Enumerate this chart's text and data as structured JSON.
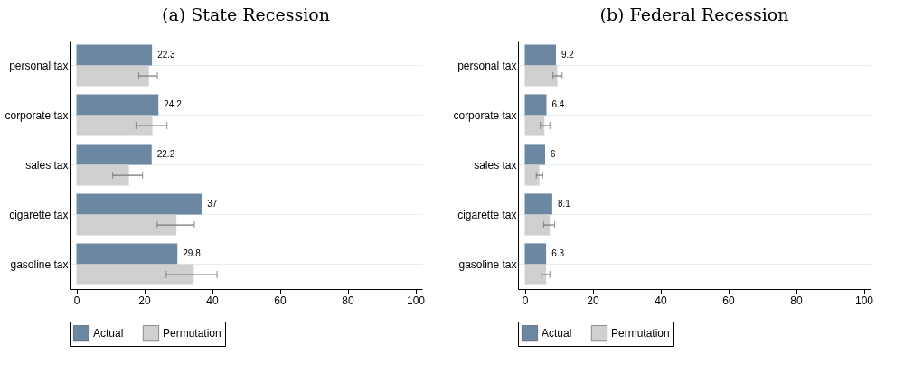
{
  "chart_data": [
    {
      "type": "bar",
      "orientation": "horizontal",
      "title": "(a) State Recession",
      "categories": [
        "personal tax",
        "corporate tax",
        "sales tax",
        "cigarette tax",
        "gasoline tax"
      ],
      "xlim": [
        -2,
        102
      ],
      "xticks": [
        0,
        20,
        40,
        60,
        80,
        100
      ],
      "grid": "y",
      "legend": "bottom",
      "series": [
        {
          "name": "Actual",
          "color": "#6c87a2",
          "values": [
            22.3,
            24.2,
            22.2,
            37,
            29.8
          ],
          "value_labels": [
            "22.3",
            "24.2",
            "22.2",
            "37",
            "29.8"
          ]
        },
        {
          "name": "Permutation",
          "color": "#d0d0d0",
          "values": [
            21.4,
            22.4,
            15.5,
            29.5,
            34.6
          ],
          "errors": [
            [
              18.4,
              23.9
            ],
            [
              17.6,
              26.7
            ],
            [
              10.7,
              19.5
            ],
            [
              23.8,
              34.8
            ],
            [
              26.5,
              41.5
            ]
          ]
        }
      ]
    },
    {
      "type": "bar",
      "orientation": "horizontal",
      "title": "(b) Federal Recession",
      "categories": [
        "personal tax",
        "corporate tax",
        "sales tax",
        "cigarette tax",
        "gasoline tax"
      ],
      "xlim": [
        -2,
        102
      ],
      "xticks": [
        0,
        20,
        40,
        60,
        80,
        100
      ],
      "grid": "y",
      "legend": "bottom",
      "series": [
        {
          "name": "Actual",
          "color": "#6c87a2",
          "values": [
            9.2,
            6.4,
            6,
            8.1,
            6.3
          ],
          "value_labels": [
            "9.2",
            "6.4",
            "6",
            "8.1",
            "6.3"
          ]
        },
        {
          "name": "Permutation",
          "color": "#d0d0d0",
          "values": [
            9.6,
            5.8,
            4.3,
            7.4,
            6.3
          ],
          "errors": [
            [
              8.3,
              11.0
            ],
            [
              4.6,
              7.4
            ],
            [
              3.4,
              5.3
            ],
            [
              5.6,
              8.8
            ],
            [
              5.0,
              7.4
            ]
          ]
        }
      ]
    }
  ]
}
